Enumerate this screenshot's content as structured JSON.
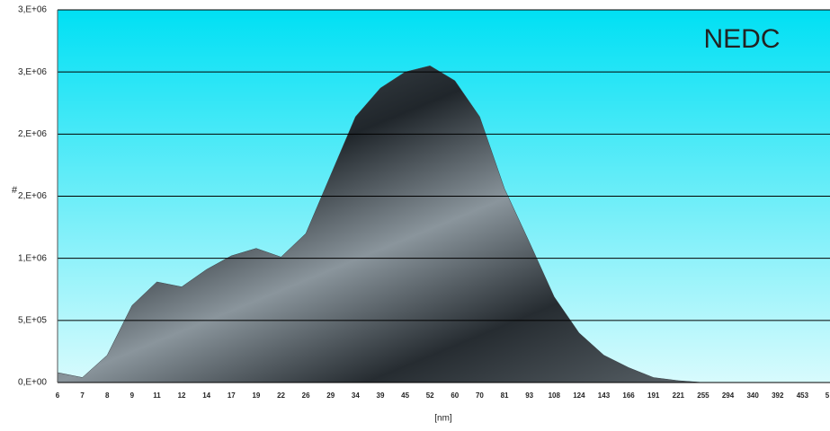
{
  "chart_data": {
    "type": "area",
    "annotation": "NEDC",
    "xlabel": "[nm]",
    "ylabel": "#",
    "categories": [
      "6",
      "7",
      "8",
      "9",
      "11",
      "12",
      "14",
      "17",
      "19",
      "22",
      "26",
      "29",
      "34",
      "39",
      "45",
      "52",
      "60",
      "70",
      "81",
      "93",
      "108",
      "124",
      "143",
      "166",
      "191",
      "221",
      "255",
      "294",
      "340",
      "392",
      "453",
      "5"
    ],
    "values": [
      80000,
      40000,
      220000,
      620000,
      810000,
      770000,
      910000,
      1020000,
      1080000,
      1010000,
      1200000,
      1670000,
      2140000,
      2370000,
      2500000,
      2550000,
      2430000,
      2140000,
      1560000,
      1130000,
      690000,
      400000,
      220000,
      120000,
      40000,
      15000,
      0,
      0,
      0,
      0,
      0,
      0
    ],
    "color": "#3a4248",
    "ylim": [
      0,
      3000000
    ],
    "yticks": [
      {
        "value": 0,
        "label": "0,E+00"
      },
      {
        "value": 500000,
        "label": "5,E+05"
      },
      {
        "value": 1000000,
        "label": "1,E+06"
      },
      {
        "value": 1500000,
        "label": "2,E+06"
      },
      {
        "value": 2000000,
        "label": "2,E+06"
      },
      {
        "value": 2500000,
        "label": "3,E+06"
      },
      {
        "value": 3000000,
        "label": "3,E+06"
      }
    ],
    "grid": true
  }
}
